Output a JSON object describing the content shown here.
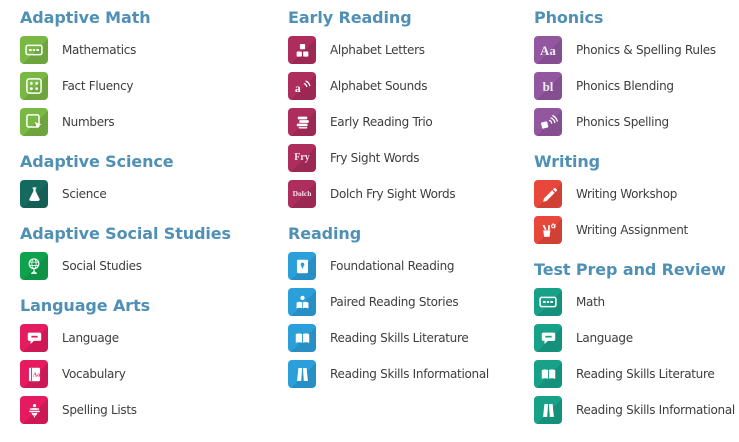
{
  "colors": {
    "heading": "#4f90b4",
    "label": "#3d3d3d",
    "background": "#ffffff"
  },
  "columns": [
    {
      "sections": [
        {
          "title": "Adaptive Math",
          "color": "#79b843",
          "items": [
            {
              "label": "Mathematics",
              "icon": "calculator-icon"
            },
            {
              "label": "Fact Fluency",
              "icon": "domino-icon"
            },
            {
              "label": "Numbers",
              "icon": "touch-numbers-icon"
            }
          ]
        },
        {
          "title": "Adaptive Science",
          "color": "#156a60",
          "items": [
            {
              "label": "Science",
              "icon": "flask-icon"
            }
          ]
        },
        {
          "title": "Adaptive Social Studies",
          "color": "#0fa24c",
          "items": [
            {
              "label": "Social Studies",
              "icon": "globe-icon"
            }
          ]
        },
        {
          "title": "Language Arts",
          "color": "#e51a5f",
          "items": [
            {
              "label": "Language",
              "icon": "speech-bubble-icon"
            },
            {
              "label": "Vocabulary",
              "icon": "dictionary-icon"
            },
            {
              "label": "Spelling Lists",
              "icon": "bee-icon"
            }
          ]
        }
      ]
    },
    {
      "sections": [
        {
          "title": "Early Reading",
          "color": "#ad2d5c",
          "items": [
            {
              "label": "Alphabet Letters",
              "icon": "letter-blocks-icon"
            },
            {
              "label": "Alphabet Sounds",
              "icon": "letter-sound-icon"
            },
            {
              "label": "Early Reading Trio",
              "icon": "book-stack-icon"
            },
            {
              "label": "Fry Sight Words",
              "icon": "fry-text-icon",
              "icon_text": "Fry"
            },
            {
              "label": "Dolch Fry Sight Words",
              "icon": "dolch-text-icon",
              "icon_text": "Dolch"
            }
          ]
        },
        {
          "title": "Reading",
          "color": "#2b9fd9",
          "items": [
            {
              "label": "Foundational Reading",
              "icon": "tablet-pin-icon"
            },
            {
              "label": "Paired Reading Stories",
              "icon": "reader-icon"
            },
            {
              "label": "Reading Skills Literature",
              "icon": "open-book-icon"
            },
            {
              "label": "Reading Skills Informational",
              "icon": "newspaper-icon"
            }
          ]
        }
      ]
    },
    {
      "sections": [
        {
          "title": "Phonics",
          "color": "#9357a0",
          "items": [
            {
              "label": "Phonics & Spelling Rules",
              "icon": "aa-text-icon",
              "icon_text": "Aa"
            },
            {
              "label": "Phonics Blending",
              "icon": "bl-text-icon",
              "icon_text": "bl"
            },
            {
              "label": "Phonics Spelling",
              "icon": "spelling-sound-icon"
            }
          ]
        },
        {
          "title": "Writing",
          "color": "#e8473b",
          "items": [
            {
              "label": "Writing Workshop",
              "icon": "pencil-icon"
            },
            {
              "label": "Writing Assignment",
              "icon": "desk-supplies-icon"
            }
          ]
        },
        {
          "title": "Test Prep and Review",
          "color": "#17a189",
          "items": [
            {
              "label": "Math",
              "icon": "calculator-icon"
            },
            {
              "label": "Language",
              "icon": "speech-bubble-icon"
            },
            {
              "label": "Reading Skills Literature",
              "icon": "open-book-icon"
            },
            {
              "label": "Reading Skills Informational",
              "icon": "newspaper-icon"
            }
          ]
        }
      ]
    }
  ]
}
